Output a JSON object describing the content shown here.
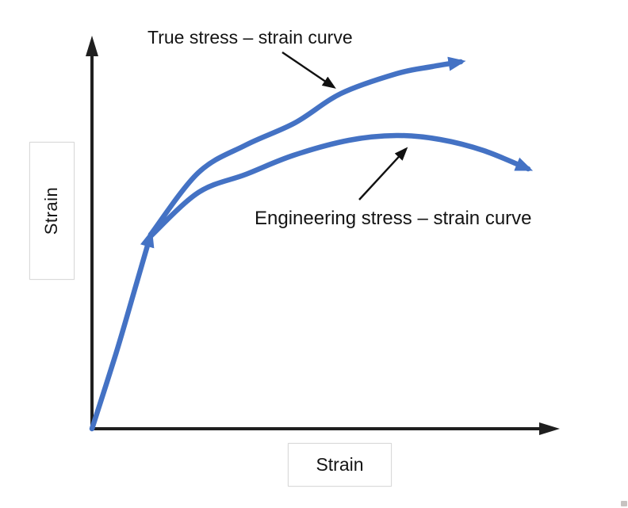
{
  "figure": {
    "y_axis": {
      "label": "Strain"
    },
    "x_axis": {
      "label": "Strain"
    },
    "annotations": {
      "true_curve_label": "True stress – strain curve",
      "engineering_curve_label": "Engineering stress – strain curve"
    },
    "colors": {
      "curve_blue": "#4472C4",
      "axis_black": "#1f1f1f",
      "text": "#141414",
      "label_box_border": "#d9d9d9"
    }
  },
  "geometry": {
    "elastic_segment_points": [
      [
        116,
        541
      ],
      [
        146,
        447
      ],
      [
        168,
        372
      ],
      [
        190,
        296
      ]
    ],
    "true_curve_points": [
      [
        190,
        296
      ],
      [
        250,
        218
      ],
      [
        310,
        183
      ],
      [
        372,
        155
      ],
      [
        430,
        118
      ],
      [
        500,
        93
      ],
      [
        545,
        84
      ],
      [
        581,
        78
      ]
    ],
    "engineering_curve_points": [
      [
        190,
        298
      ],
      [
        250,
        243
      ],
      [
        310,
        220
      ],
      [
        370,
        196
      ],
      [
        440,
        177
      ],
      [
        500,
        171
      ],
      [
        555,
        176
      ],
      [
        610,
        190
      ],
      [
        666,
        213
      ]
    ],
    "true_label_arrow_points": [
      [
        356,
        66
      ],
      [
        421,
        110
      ]
    ],
    "engineering_label_arrow_points": [
      [
        453,
        252
      ],
      [
        512,
        188
      ]
    ]
  },
  "chart_data": {
    "type": "line",
    "title": "",
    "xlabel": "Strain",
    "ylabel": "Strain",
    "axes_numeric": false,
    "grid": false,
    "legend_position": "none (arrow-pointed text annotations)",
    "xlim_normalized": [
      0,
      1
    ],
    "ylim_normalized": [
      0,
      1
    ],
    "series": [
      {
        "name": "True stress – strain curve",
        "style": "solid blue, arrowhead at end pointing up-right",
        "x": [
          0,
          0.088,
          0.125,
          0.227,
          0.329,
          0.434,
          0.532,
          0.651,
          0.727,
          0.788
        ],
        "y": [
          0,
          0.341,
          0.494,
          0.651,
          0.722,
          0.778,
          0.853,
          0.903,
          0.921,
          0.933
        ]
      },
      {
        "name": "Engineering stress – strain curve",
        "style": "solid blue, peaks then drops, arrowhead at end pointing down-right",
        "x": [
          0,
          0.088,
          0.125,
          0.227,
          0.329,
          0.431,
          0.549,
          0.651,
          0.744,
          0.837,
          0.932
        ],
        "y": [
          0,
          0.341,
          0.494,
          0.601,
          0.647,
          0.696,
          0.734,
          0.746,
          0.736,
          0.708,
          0.661
        ]
      }
    ],
    "shared_elastic_segment": "both curves coincide along the initial steep elastic portion, which carries a blue arrowhead partway up",
    "annotations": [
      {
        "text": "True stress – strain curve",
        "arrow_points_to": "upper curve"
      },
      {
        "text": "Engineering stress – strain curve",
        "arrow_points_to": "lower curve near its peak"
      }
    ]
  }
}
